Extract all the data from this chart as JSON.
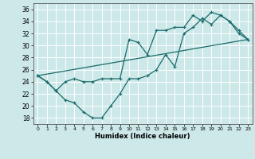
{
  "xlabel": "Humidex (Indice chaleur)",
  "bg_color": "#cde8e8",
  "grid_color": "#ffffff",
  "line_color": "#1a6b6b",
  "xlim": [
    -0.5,
    23.5
  ],
  "ylim": [
    17,
    37
  ],
  "xticks": [
    0,
    1,
    2,
    3,
    4,
    5,
    6,
    7,
    8,
    9,
    10,
    11,
    12,
    13,
    14,
    15,
    16,
    17,
    18,
    19,
    20,
    21,
    22,
    23
  ],
  "yticks": [
    18,
    20,
    22,
    24,
    26,
    28,
    30,
    32,
    34,
    36
  ],
  "line1_x": [
    0,
    1,
    2,
    3,
    4,
    5,
    6,
    7,
    8,
    9,
    10,
    11,
    12,
    13,
    14,
    15,
    16,
    17,
    18,
    19,
    20,
    21,
    22,
    23
  ],
  "line1_y": [
    25.0,
    24.0,
    22.5,
    21.0,
    20.5,
    19.0,
    18.0,
    18.0,
    20.0,
    22.0,
    24.5,
    24.5,
    25.0,
    26.0,
    28.5,
    26.5,
    32.0,
    33.0,
    34.5,
    33.5,
    35.0,
    34.0,
    32.0,
    31.0
  ],
  "line2_x": [
    0,
    1,
    2,
    3,
    4,
    5,
    6,
    7,
    8,
    9,
    10,
    11,
    12,
    13,
    14,
    15,
    16,
    17,
    18,
    19,
    20,
    21,
    22,
    23
  ],
  "line2_y": [
    25.0,
    24.0,
    22.5,
    24.0,
    24.5,
    24.0,
    24.0,
    24.5,
    24.5,
    24.5,
    31.0,
    30.5,
    28.5,
    32.5,
    32.5,
    33.0,
    33.0,
    35.0,
    34.0,
    35.5,
    35.0,
    34.0,
    32.5,
    31.0
  ],
  "line3_x": [
    0,
    23
  ],
  "line3_y": [
    25.0,
    31.0
  ]
}
